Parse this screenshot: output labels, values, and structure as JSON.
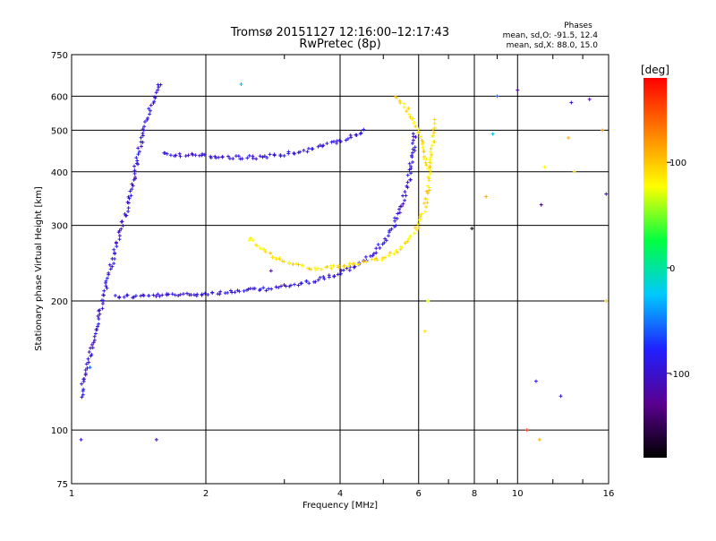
{
  "chart_data": {
    "type": "scatter",
    "title": "Tromsø 20151127 12:16:00–12:17:43",
    "subtitle": "RwPretec (8p)",
    "xlabel": "Frequency [MHz]",
    "ylabel": "Stationary phase Virtual Height [km]",
    "xscale": "log",
    "yscale": "log",
    "xlim": [
      1,
      16
    ],
    "ylim": [
      75,
      750
    ],
    "xticks": [
      1,
      2,
      4,
      6,
      8,
      10,
      16
    ],
    "xtick_labels": [
      "1",
      "2",
      "4",
      "6",
      "8",
      "10",
      "16"
    ],
    "yticks": [
      75,
      100,
      200,
      300,
      400,
      500,
      600,
      750
    ],
    "ytick_labels": [
      "75",
      "100",
      "200",
      "300",
      "400",
      "500",
      "600",
      "750"
    ],
    "grid": true,
    "phase_info": {
      "heading": "Phases",
      "line_o": "mean, sd,O: -91.5, 12.4",
      "line_x": "mean, sd,X:  88.0, 15.0"
    },
    "colorbar": {
      "label": "[deg]",
      "range": [
        -180,
        180
      ],
      "ticks": [
        100,
        0,
        -100
      ],
      "tick_labels": [
        "100",
        "0",
        "-100"
      ],
      "stops": [
        "#000000",
        "#5a0090",
        "#2020ff",
        "#00c8ff",
        "#00ff40",
        "#ffff00",
        "#ff8000",
        "#ff0000"
      ]
    },
    "series": [
      {
        "mode": "O",
        "phase": -95,
        "color": "#1a3cff",
        "traces": [
          {
            "x": [
              1.25,
              1.4,
              1.6,
              1.8,
              2.0,
              2.3,
              2.7,
              3.2,
              3.8,
              4.3,
              4.8,
              5.2,
              5.5,
              5.7,
              5.8,
              5.9
            ],
            "y": [
              205,
              205,
              206,
              207,
              208,
              210,
              213,
              218,
              228,
              240,
              260,
              290,
              330,
              380,
              430,
              500
            ]
          },
          {
            "x": [
              1.6,
              1.9,
              2.2,
              2.6,
              3.0,
              3.4,
              3.8,
              4.2,
              4.6
            ],
            "y": [
              440,
              437,
              432,
              432,
              440,
              450,
              465,
              480,
              500
            ]
          },
          {
            "x": [
              1.05,
              1.1,
              1.15,
              1.2,
              1.25,
              1.3,
              1.35,
              1.4,
              1.45,
              1.5,
              1.55,
              1.6
            ],
            "y": [
              120,
              150,
              180,
              220,
              260,
              300,
              350,
              420,
              500,
              560,
              620,
              650
            ]
          }
        ]
      },
      {
        "mode": "X",
        "phase": 88,
        "color": "#e8f000",
        "traces": [
          {
            "x": [
              2.5,
              2.8,
              3.1,
              3.5,
              4.0,
              4.5,
              5.0,
              5.5,
              5.9,
              6.2,
              6.35,
              6.45,
              6.5
            ],
            "y": [
              280,
              255,
              245,
              238,
              240,
              245,
              252,
              265,
              290,
              330,
              390,
              460,
              540
            ]
          },
          {
            "x": [
              5.3,
              5.6,
              5.9,
              6.1,
              6.3
            ],
            "y": [
              600,
              570,
              520,
              470,
              400
            ]
          }
        ]
      }
    ],
    "scatter_points": [
      {
        "x": 1.05,
        "y": 95,
        "phase": -100
      },
      {
        "x": 1.1,
        "y": 140,
        "phase": -60
      },
      {
        "x": 1.55,
        "y": 95,
        "phase": -110
      },
      {
        "x": 2.4,
        "y": 640,
        "phase": -30
      },
      {
        "x": 2.8,
        "y": 235,
        "phase": -120
      },
      {
        "x": 6.2,
        "y": 170,
        "phase": 90
      },
      {
        "x": 6.3,
        "y": 200,
        "phase": 70
      },
      {
        "x": 7.9,
        "y": 295,
        "phase": -180
      },
      {
        "x": 8.5,
        "y": 350,
        "phase": 110
      },
      {
        "x": 8.8,
        "y": 490,
        "phase": -20
      },
      {
        "x": 9.0,
        "y": 600,
        "phase": -50
      },
      {
        "x": 10.0,
        "y": 620,
        "phase": -120
      },
      {
        "x": 10.5,
        "y": 100,
        "phase": 160
      },
      {
        "x": 11.0,
        "y": 130,
        "phase": -90
      },
      {
        "x": 11.2,
        "y": 95,
        "phase": 110
      },
      {
        "x": 11.3,
        "y": 335,
        "phase": -140
      },
      {
        "x": 11.5,
        "y": 410,
        "phase": 80
      },
      {
        "x": 12.5,
        "y": 120,
        "phase": -100
      },
      {
        "x": 13.0,
        "y": 480,
        "phase": 110
      },
      {
        "x": 13.2,
        "y": 580,
        "phase": -100
      },
      {
        "x": 13.4,
        "y": 400,
        "phase": 90
      },
      {
        "x": 14.5,
        "y": 590,
        "phase": -120
      },
      {
        "x": 15.5,
        "y": 500,
        "phase": 120
      },
      {
        "x": 15.8,
        "y": 355,
        "phase": -110
      },
      {
        "x": 15.8,
        "y": 200,
        "phase": 100
      }
    ]
  }
}
